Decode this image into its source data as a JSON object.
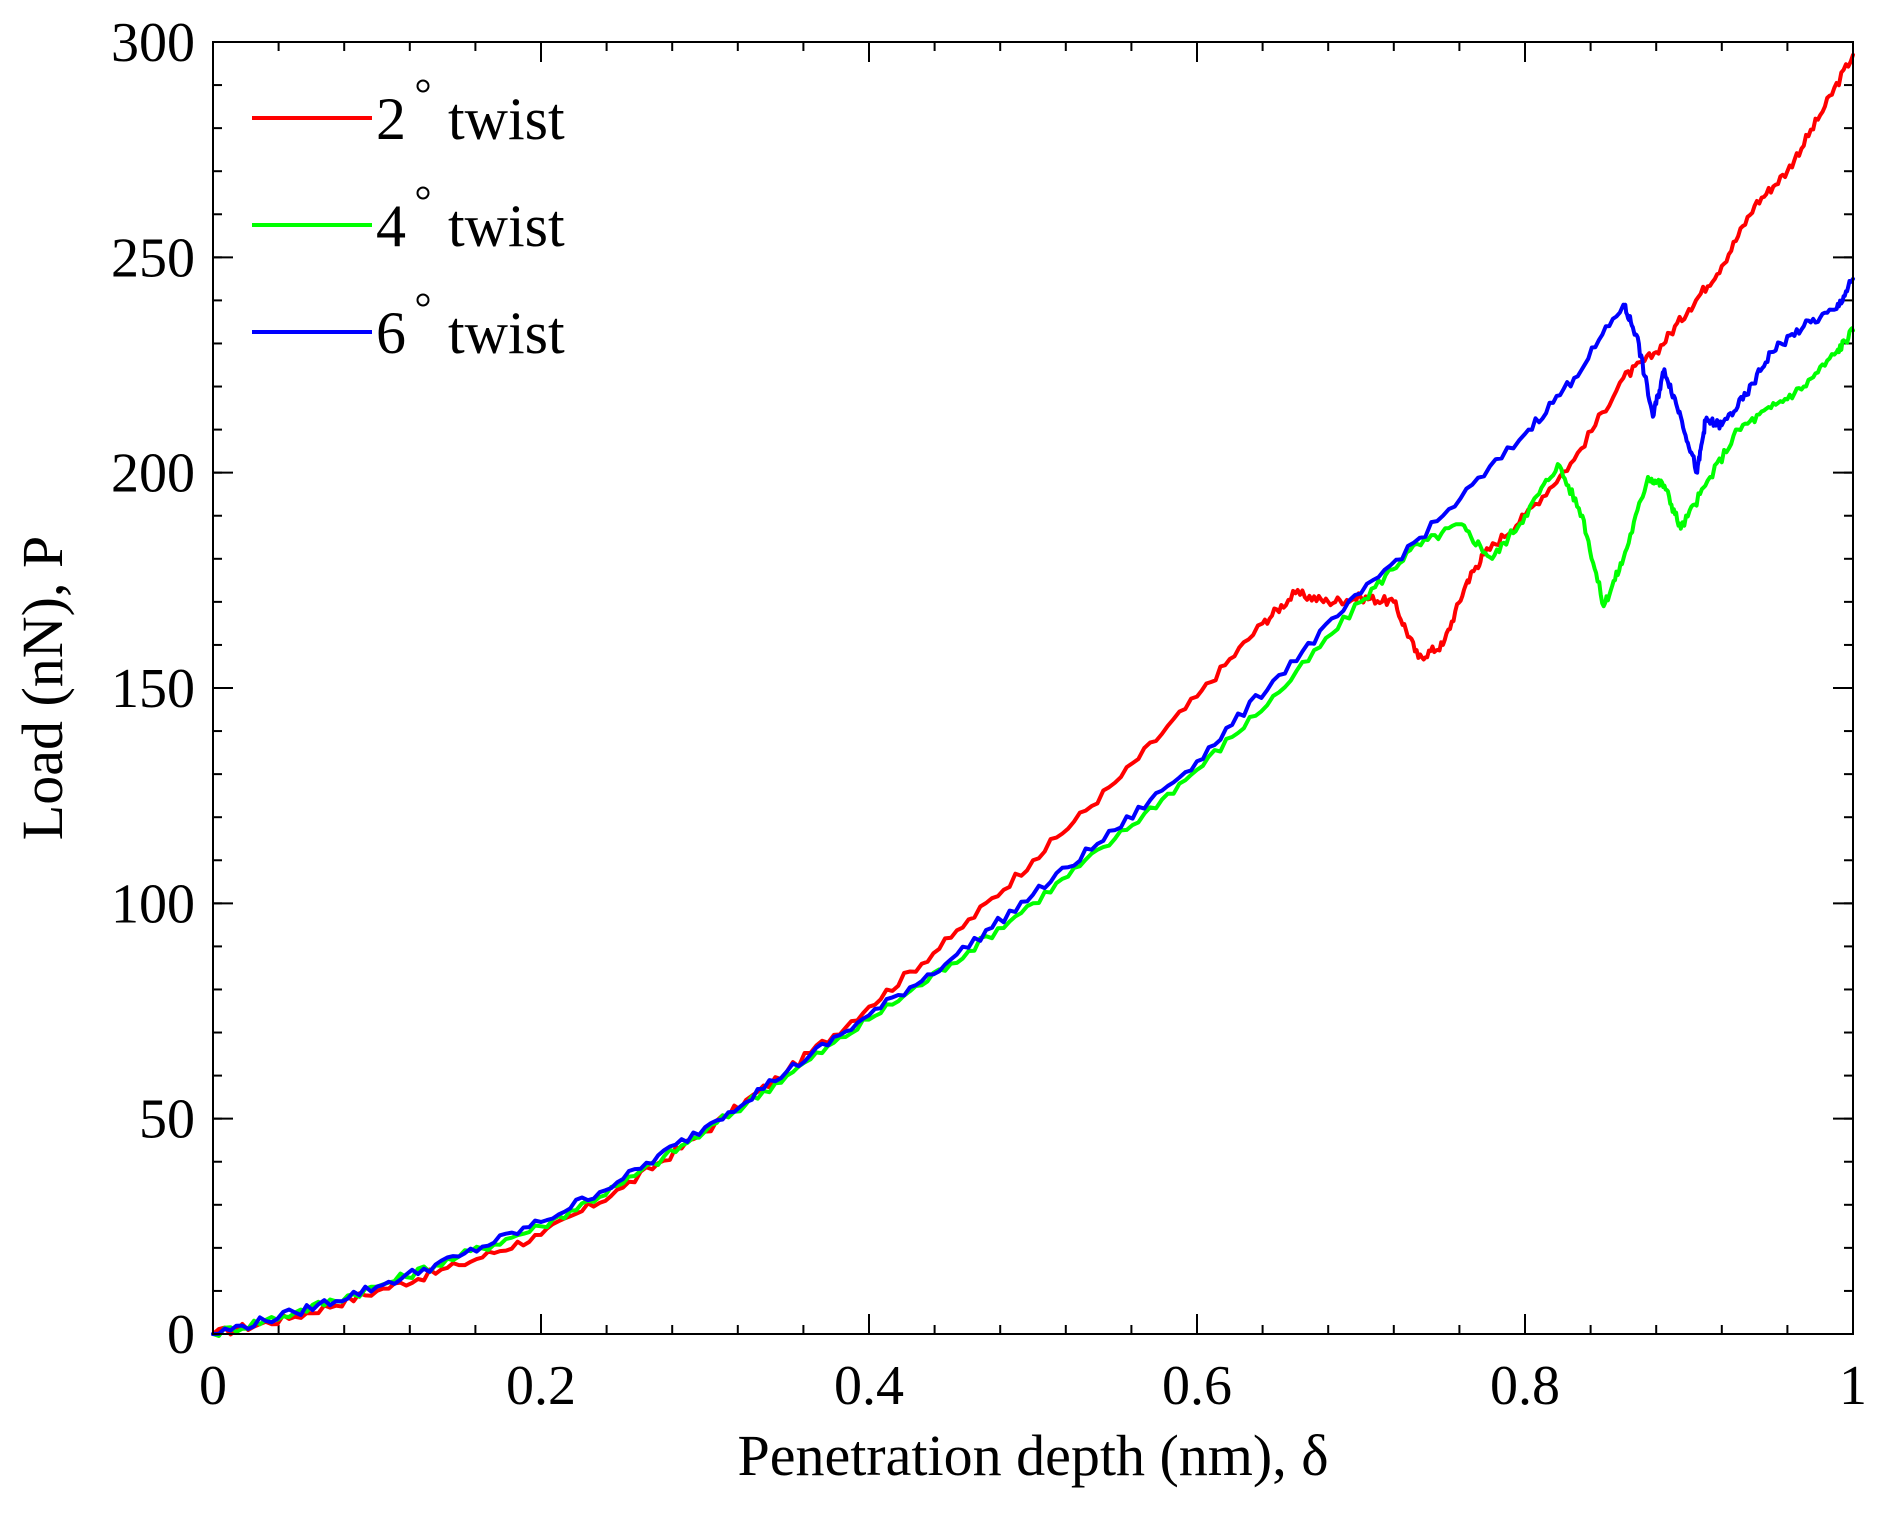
{
  "chart_data": {
    "type": "line",
    "xlabel": "Penetration depth (nm), δ",
    "ylabel": "Load (nN), P",
    "xlim": [
      0,
      1
    ],
    "ylim": [
      0,
      300
    ],
    "xticks": [
      0,
      0.2,
      0.4,
      0.6,
      0.8,
      1
    ],
    "xtick_labels": [
      "0",
      "0.2",
      "0.4",
      "0.6",
      "0.8",
      "1"
    ],
    "yticks": [
      0,
      50,
      100,
      150,
      200,
      250,
      300
    ],
    "ytick_labels": [
      "0",
      "50",
      "100",
      "150",
      "200",
      "250",
      "300"
    ],
    "x_minor_step": 0.04,
    "y_minor_step": 10,
    "grid": false,
    "legend_position": "top-left",
    "series": [
      {
        "name": "2",
        "name_suffix": "twist",
        "color": "#ff0000",
        "x": [
          0,
          0.05,
          0.1,
          0.15,
          0.2,
          0.25,
          0.3,
          0.35,
          0.4,
          0.45,
          0.5,
          0.55,
          0.6,
          0.64,
          0.66,
          0.68,
          0.7,
          0.72,
          0.735,
          0.75,
          0.765,
          0.775,
          0.8,
          0.83,
          0.86,
          0.88,
          0.9,
          0.92,
          0.94,
          0.96,
          0.98,
          1.0
        ],
        "y": [
          0,
          4,
          10,
          16,
          23,
          34,
          47,
          61,
          76,
          92,
          110,
          128,
          148,
          165,
          172,
          170,
          171,
          170,
          157,
          160,
          175,
          181,
          190,
          203,
          222,
          228,
          238,
          248,
          262,
          270,
          283,
          297
        ]
      },
      {
        "name": "4",
        "name_suffix": "twist",
        "color": "#00ff00",
        "x": [
          0,
          0.05,
          0.1,
          0.15,
          0.2,
          0.25,
          0.3,
          0.35,
          0.4,
          0.45,
          0.5,
          0.55,
          0.6,
          0.65,
          0.7,
          0.73,
          0.76,
          0.78,
          0.8,
          0.82,
          0.835,
          0.848,
          0.86,
          0.875,
          0.885,
          0.895,
          0.91,
          0.93,
          0.95,
          0.97,
          0.99,
          1.0
        ],
        "y": [
          0,
          5,
          11,
          18,
          25,
          35,
          47,
          60,
          73,
          86,
          100,
          115,
          131,
          149,
          170,
          182,
          188,
          180,
          190,
          202,
          190,
          169,
          180,
          199,
          197,
          187,
          197,
          210,
          215,
          220,
          228,
          233
        ]
      },
      {
        "name": "6",
        "name_suffix": "twist",
        "color": "#0000ff",
        "x": [
          0,
          0.05,
          0.1,
          0.15,
          0.2,
          0.25,
          0.3,
          0.35,
          0.4,
          0.45,
          0.5,
          0.55,
          0.6,
          0.65,
          0.7,
          0.75,
          0.8,
          0.83,
          0.86,
          0.868,
          0.878,
          0.885,
          0.895,
          0.905,
          0.91,
          0.92,
          0.935,
          0.95,
          0.97,
          0.99,
          1.0
        ],
        "y": [
          0,
          5,
          11,
          18,
          26,
          36,
          48,
          61,
          74,
          87,
          102,
          117,
          133,
          153,
          172,
          190,
          209,
          222,
          239,
          232,
          213,
          224,
          213,
          200,
          212,
          211,
          218,
          228,
          234,
          238,
          245
        ]
      }
    ]
  }
}
